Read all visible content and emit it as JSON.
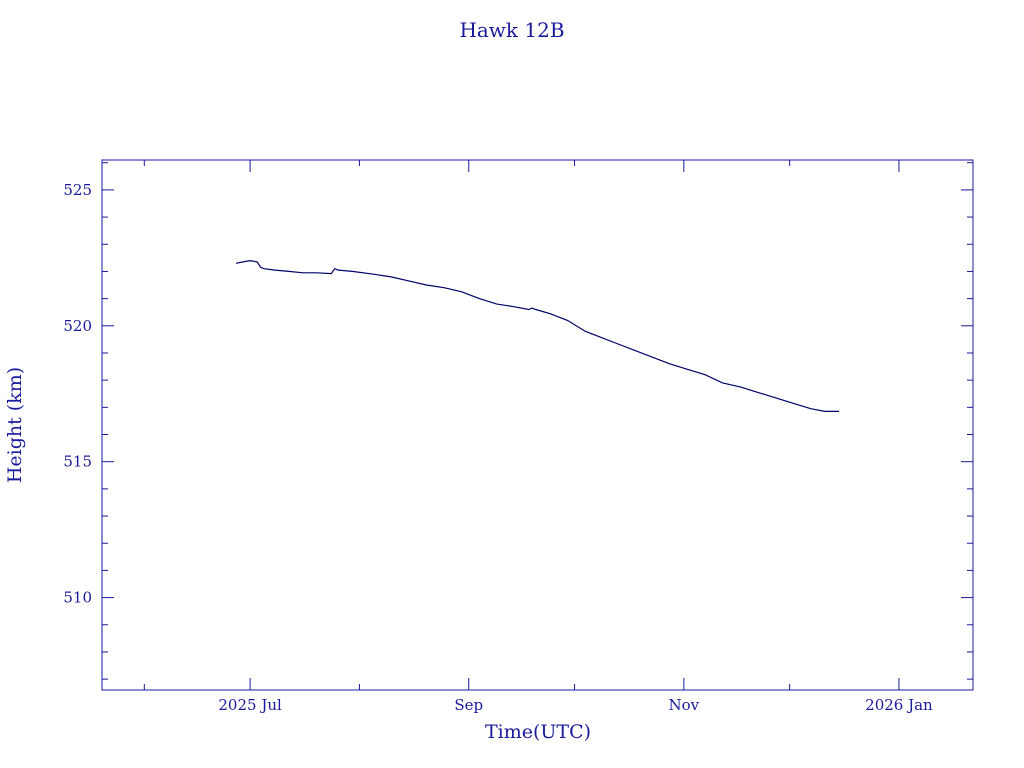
{
  "chart_data": {
    "type": "line",
    "title": "Hawk 12B",
    "xlabel": "Time(UTC)",
    "ylabel": "Height (km)",
    "colors": {
      "axis": "#1a1a9c",
      "line": "#00006b"
    },
    "x_tick_labels": [
      "2025 Jul",
      "Sep",
      "Nov",
      "2026 Jan"
    ],
    "x_ticks": [
      "2025-07-01",
      "2025-09-01",
      "2025-11-01",
      "2026-01-01"
    ],
    "xlim": [
      "2025-05-20",
      "2026-01-22"
    ],
    "y_tick_labels": [
      "510",
      "515",
      "520",
      "525"
    ],
    "y_ticks": [
      510,
      515,
      520,
      525
    ],
    "ylim": [
      506.6,
      526.1
    ],
    "grid": false,
    "legend": "none",
    "series": [
      {
        "x": [
          "2025-06-27",
          "2025-06-29",
          "2025-07-01",
          "2025-07-03",
          "2025-07-04",
          "2025-07-05",
          "2025-07-08",
          "2025-07-12",
          "2025-07-16",
          "2025-07-20",
          "2025-07-24",
          "2025-07-25",
          "2025-07-26",
          "2025-07-30",
          "2025-08-05",
          "2025-08-10",
          "2025-08-15",
          "2025-08-20",
          "2025-08-25",
          "2025-08-30",
          "2025-09-04",
          "2025-09-09",
          "2025-09-14",
          "2025-09-18",
          "2025-09-19",
          "2025-09-20",
          "2025-09-24",
          "2025-09-29",
          "2025-10-04",
          "2025-10-08",
          "2025-10-13",
          "2025-10-18",
          "2025-10-23",
          "2025-10-28",
          "2025-11-02",
          "2025-11-07",
          "2025-11-12",
          "2025-11-17",
          "2025-11-22",
          "2025-11-27",
          "2025-12-02",
          "2025-12-07",
          "2025-12-11",
          "2025-12-15"
        ],
        "y": [
          522.3,
          522.35,
          522.4,
          522.35,
          522.15,
          522.1,
          522.05,
          522.0,
          521.95,
          521.95,
          521.92,
          522.1,
          522.05,
          522.0,
          521.9,
          521.8,
          521.65,
          521.5,
          521.4,
          521.25,
          521.0,
          520.8,
          520.7,
          520.6,
          520.65,
          520.6,
          520.45,
          520.2,
          519.8,
          519.6,
          519.35,
          519.1,
          518.85,
          518.6,
          518.4,
          518.2,
          517.9,
          517.75,
          517.55,
          517.35,
          517.15,
          516.95,
          516.85,
          516.85
        ]
      }
    ]
  }
}
